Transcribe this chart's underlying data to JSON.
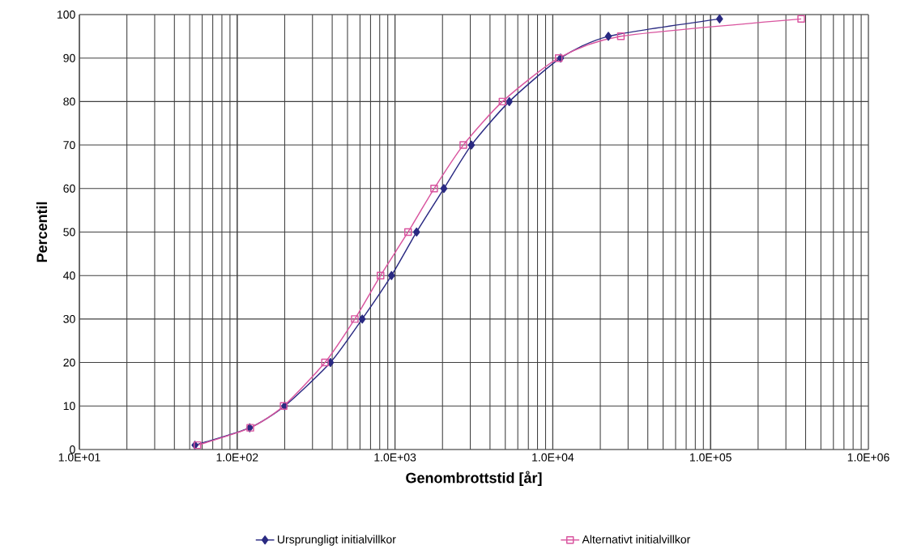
{
  "chart_data": {
    "type": "line",
    "xlabel": "Genombrottstid [år]",
    "ylabel": "Percentil",
    "log": "x",
    "xlim": [
      10,
      1000000
    ],
    "ylim": [
      0,
      100
    ],
    "xticks": [
      {
        "value": 10,
        "label": "1.0E+01"
      },
      {
        "value": 100,
        "label": "1.0E+02"
      },
      {
        "value": 1000,
        "label": "1.0E+03"
      },
      {
        "value": 10000,
        "label": "1.0E+04"
      },
      {
        "value": 100000,
        "label": "1.0E+05"
      },
      {
        "value": 1000000,
        "label": "1.0E+06"
      }
    ],
    "yticks": [
      0,
      10,
      20,
      30,
      40,
      50,
      60,
      70,
      80,
      90,
      100
    ],
    "grid": true,
    "legend": "bottom",
    "series": [
      {
        "name": "Ursprungligt initialvillkor",
        "color": "#2a2a82",
        "marker": "diamond",
        "x": [
          54,
          120,
          200,
          390,
          620,
          950,
          1370,
          2040,
          3050,
          5300,
          11200,
          22500,
          114000
        ],
        "values": [
          1,
          5,
          10,
          20,
          30,
          40,
          50,
          60,
          70,
          80,
          90,
          95,
          99
        ]
      },
      {
        "name": "Alternativt initialvillkor",
        "color": "#d9559f",
        "marker": "square",
        "x": [
          56,
          121,
          197,
          360,
          556,
          810,
          1210,
          1770,
          2710,
          4800,
          10900,
          27000,
          375000
        ],
        "values": [
          1,
          5,
          10,
          20,
          30,
          40,
          50,
          60,
          70,
          80,
          90,
          95,
          99
        ]
      }
    ]
  }
}
